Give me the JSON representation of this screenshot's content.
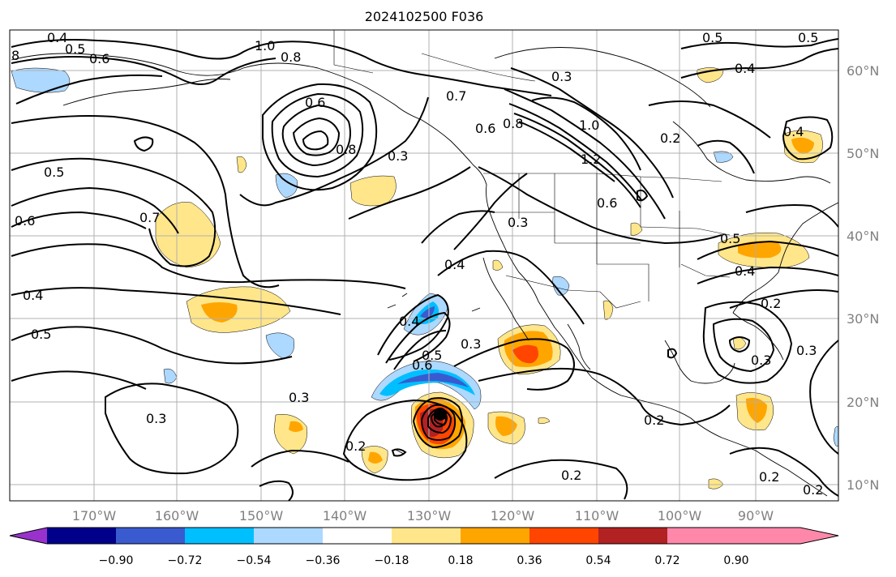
{
  "title": "2024102500 F036",
  "longitude_labels": [
    "170°W",
    "160°W",
    "150°W",
    "140°W",
    "130°W",
    "120°W",
    "110°W",
    "100°W",
    "90°W"
  ],
  "latitude_labels": [
    "60°N",
    "50°N",
    "40°N",
    "30°N",
    "20°N",
    "10°N"
  ],
  "colorbar": {
    "tick_labels": [
      "−0.90",
      "−0.72",
      "−0.54",
      "−0.36",
      "−0.18",
      "0.18",
      "0.36",
      "0.54",
      "0.72",
      "0.90"
    ],
    "colors": [
      "#9932cc",
      "#00008b",
      "#3a5bd0",
      "#00bfff",
      "#add8ff",
      "#ffffff",
      "#ffe68a",
      "#ffa500",
      "#ff4500",
      "#b22222",
      "#ff88aa"
    ]
  },
  "contour_labels": [
    "0.4",
    "0.5",
    "0.6",
    "8",
    "1.0",
    "0.8",
    "0.6",
    "0.5",
    "0.7",
    "0.6",
    "0.4",
    "0.5",
    "0.3",
    "0.3",
    "0.2",
    "0.3",
    "0.4",
    "0.5",
    "0.4",
    "0.3",
    "0.2",
    "0.2",
    "0.2",
    "0.5",
    "0.3",
    "0.7",
    "0.8",
    "1.0",
    "1.2",
    "0.6",
    "0.4",
    "0.5",
    "0.6",
    "0.3",
    "0.2",
    "0.3",
    "0.4",
    "0.6",
    "0.5",
    "0.8",
    "0.4",
    "0.3",
    "0.2",
    "0.2"
  ]
}
